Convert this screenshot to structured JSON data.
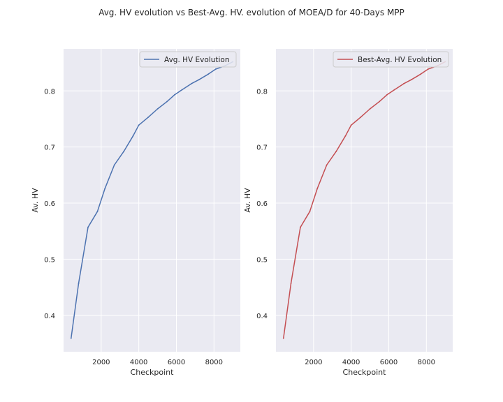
{
  "figure": {
    "suptitle": "Avg. HV evolution vs Best-Avg. HV. evolution of MOEA/D for 40-Days MPP"
  },
  "chart_data": [
    {
      "type": "line",
      "title": "",
      "xlabel": "Checkpoint",
      "ylabel": "Av. HV",
      "xlim": [
        0,
        9400
      ],
      "ylim": [
        0.335,
        0.875
      ],
      "xticks": [
        2000,
        4000,
        6000,
        8000
      ],
      "yticks": [
        0.4,
        0.5,
        0.6,
        0.7,
        0.8
      ],
      "xtick_labels": [
        "2000",
        "4000",
        "6000",
        "8000"
      ],
      "ytick_labels": [
        "0.4",
        "0.5",
        "0.6",
        "0.7",
        "0.8"
      ],
      "grid": true,
      "legend_position": "top-right",
      "series": [
        {
          "name": "Avg. HV Evolution",
          "color": "#4c72b0",
          "x": [
            400,
            800,
            1300,
            1800,
            2200,
            2700,
            3200,
            3700,
            4000,
            4500,
            5000,
            5500,
            5900,
            6300,
            6800,
            7200,
            7700,
            8100,
            8600,
            9000
          ],
          "y": [
            0.359,
            0.457,
            0.557,
            0.585,
            0.626,
            0.668,
            0.692,
            0.72,
            0.739,
            0.753,
            0.768,
            0.781,
            0.793,
            0.802,
            0.813,
            0.82,
            0.83,
            0.839,
            0.845,
            0.852
          ]
        }
      ]
    },
    {
      "type": "line",
      "title": "",
      "xlabel": "Checkpoint",
      "ylabel": "Av. HV",
      "xlim": [
        0,
        9400
      ],
      "ylim": [
        0.335,
        0.875
      ],
      "xticks": [
        2000,
        4000,
        6000,
        8000
      ],
      "yticks": [
        0.4,
        0.5,
        0.6,
        0.7,
        0.8
      ],
      "xtick_labels": [
        "2000",
        "4000",
        "6000",
        "8000"
      ],
      "ytick_labels": [
        "0.4",
        "0.5",
        "0.6",
        "0.7",
        "0.8"
      ],
      "grid": true,
      "legend_position": "top-right",
      "series": [
        {
          "name": "Best-Avg. HV Evolution",
          "color": "#c44e52",
          "x": [
            400,
            800,
            1300,
            1800,
            2200,
            2700,
            3200,
            3700,
            4000,
            4500,
            5000,
            5500,
            5900,
            6300,
            6800,
            7200,
            7700,
            8100,
            8600,
            9000
          ],
          "y": [
            0.359,
            0.457,
            0.557,
            0.585,
            0.626,
            0.668,
            0.692,
            0.72,
            0.739,
            0.753,
            0.768,
            0.781,
            0.793,
            0.802,
            0.813,
            0.82,
            0.83,
            0.839,
            0.845,
            0.852
          ]
        }
      ]
    }
  ],
  "style": {
    "axes_background": "#eaeaf2",
    "grid_color": "#ffffff",
    "text_color": "#262626",
    "legend_border": "#cccccc"
  }
}
